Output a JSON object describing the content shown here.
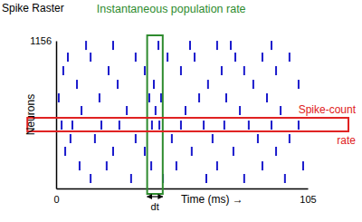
{
  "chart_data": {
    "type": "scatter",
    "title": "Spike Raster",
    "x_label": "Time (ms) →",
    "y_label": "Neurons",
    "marker": "vline",
    "color": "#1a1acc",
    "grid": false,
    "xlim": [
      0,
      105
    ],
    "ylim": [
      0,
      1156
    ],
    "xticks": [
      0,
      105
    ],
    "yticks": [
      1156
    ],
    "x": [
      12.5,
      23.8,
      42.7,
      55.9,
      67.2,
      72.9,
      89.9,
      4.9,
      14.4,
      33.2,
      46.5,
      57.8,
      74.8,
      86.1,
      97.4,
      3.0,
      21.9,
      37.0,
      52.1,
      69.1,
      78.5,
      91.8,
      8.7,
      25.7,
      40.8,
      63.4,
      82.3,
      101.2,
      1.1,
      18.1,
      38.9,
      43.8,
      59.7,
      71.0,
      88.0,
      10.6,
      29.5,
      41.5,
      54.0,
      76.7,
      93.7,
      2.3,
      6.8,
      18.9,
      26.4,
      40.0,
      43.1,
      52.1,
      61.6,
      70.2,
      80.4,
      89.9,
      101.2,
      6.0,
      16.2,
      33.2,
      48.3,
      65.3,
      84.2,
      97.4,
      3.8,
      23.8,
      37.0,
      56.6,
      74.0,
      91.8,
      9.8,
      21.1,
      39.7,
      50.2,
      67.2,
      86.1,
      103.1,
      14.4,
      31.3,
      44.6,
      62.7,
      78.5,
      95.5
    ],
    "values": [
      1120,
      1120,
      1120,
      1120,
      1120,
      1120,
      1120,
      1028,
      1028,
      1028,
      1028,
      1028,
      1028,
      1028,
      1028,
      922,
      922,
      922,
      922,
      922,
      922,
      922,
      815,
      815,
      815,
      815,
      815,
      815,
      709,
      709,
      709,
      709,
      709,
      709,
      709,
      610,
      610,
      610,
      610,
      610,
      610,
      496,
      496,
      496,
      496,
      496,
      496,
      496,
      496,
      496,
      496,
      496,
      496,
      390,
      390,
      390,
      390,
      390,
      390,
      390,
      291,
      291,
      291,
      291,
      291,
      291,
      177,
      177,
      177,
      177,
      177,
      177,
      177,
      78,
      78,
      78,
      78,
      78,
      78
    ],
    "regions": [
      {
        "label": "Instantaneous population rate",
        "color": "#2e8b2e",
        "x": [
          38,
          44.5
        ],
        "y": [
          0,
          1156
        ],
        "width_label": "dt"
      },
      {
        "label": [
          "Spike-count",
          "rate"
        ],
        "color": "#e02020",
        "x": [
          -12,
          122
        ],
        "y": [
          447,
          553
        ]
      }
    ]
  }
}
